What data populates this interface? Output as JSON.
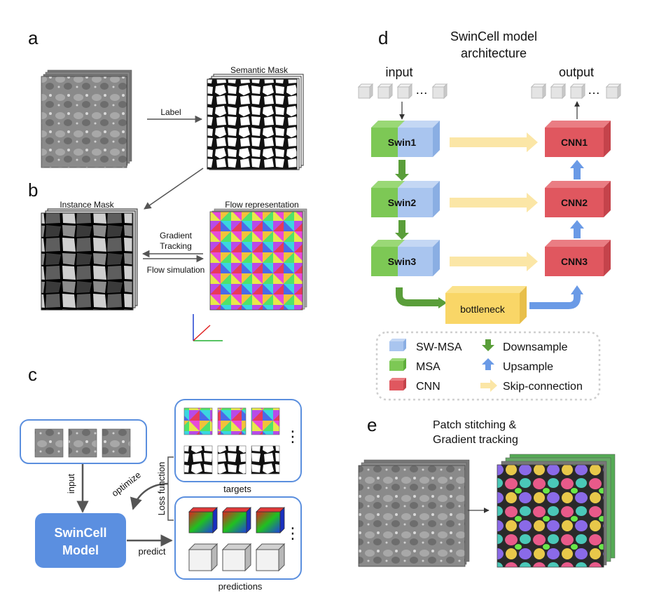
{
  "panel_a": {
    "letter": "a",
    "label_arrow": "Label",
    "semantic_mask": "Semantic Mask"
  },
  "panel_b": {
    "letter": "b",
    "instance_mask": "Instance Mask",
    "flow_representation": "Flow representation",
    "gradient_tracking_1": "Gradient",
    "gradient_tracking_2": "Tracking",
    "flow_simulation": "Flow simulation"
  },
  "panel_c": {
    "letter": "c",
    "input": "input",
    "optimize": "optimize",
    "loss_function": "Loss function",
    "model_line1": "SwinCell",
    "model_line2": "Model",
    "predict": "predict",
    "targets": "targets",
    "predictions": "predictions",
    "ellipsis": "⋮"
  },
  "panel_d": {
    "letter": "d",
    "title_line1": "SwinCell model",
    "title_line2": "architecture",
    "input": "input",
    "output": "output",
    "dots": "…",
    "encoder": [
      "Swin1",
      "Swin2",
      "Swin3"
    ],
    "decoder": [
      "CNN1",
      "CNN2",
      "CNN3"
    ],
    "bottleneck": "bottleneck",
    "legend": {
      "swmsa": "SW-MSA",
      "msa": "MSA",
      "cnn": "CNN",
      "downsample": "Downsample",
      "upsample": "Upsample",
      "skip": "Skip-connection"
    }
  },
  "panel_e": {
    "letter": "e",
    "title_line1": "Patch stitching &",
    "title_line2": "Gradient tracking"
  },
  "colors": {
    "swin_green": "#7dc855",
    "swin_blue": "#a9c5ef",
    "cnn_red": "#e0575f",
    "bottleneck": "#f9d667",
    "down_arrow": "#5a9e3a",
    "up_arrow": "#6a9ae6",
    "skip": "#fbe6a6",
    "box_border": "#5b8fde",
    "model_fill": "#5b8fe0"
  }
}
